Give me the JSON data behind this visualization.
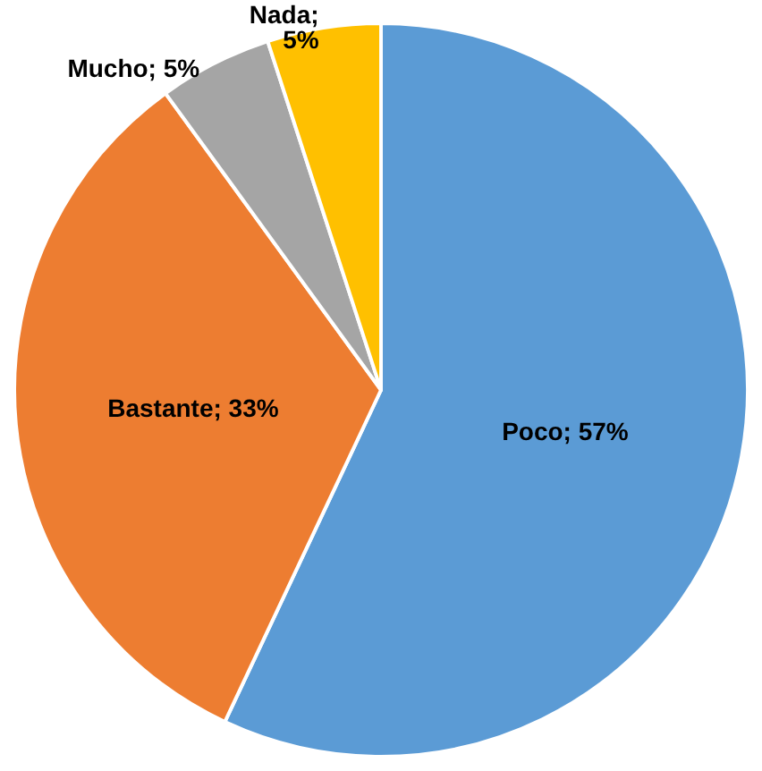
{
  "chart_data": {
    "type": "pie",
    "categories": [
      "Poco",
      "Bastante",
      "Mucho",
      "Nada"
    ],
    "values": [
      57,
      33,
      5,
      5
    ],
    "value_labels": [
      "; 57%",
      "; 33%",
      "; 5%",
      ";\n5%"
    ],
    "colors": [
      "#5b9bd5",
      "#ed7d31",
      "#a5a5a5",
      "#ffc000"
    ],
    "legend": false
  }
}
